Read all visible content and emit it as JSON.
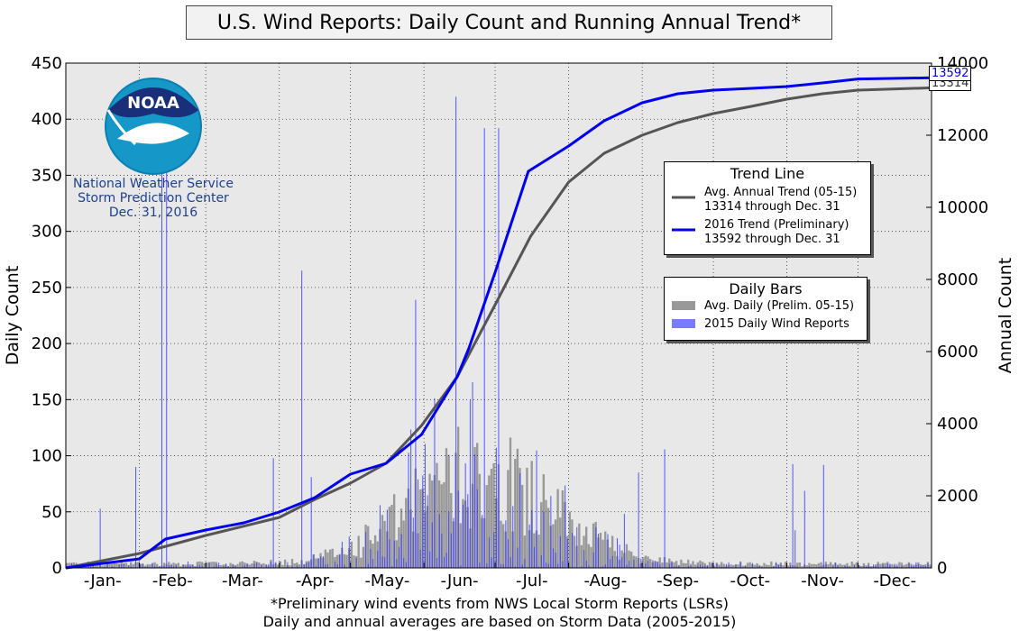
{
  "chart_data": {
    "type": "bar",
    "title": "U.S. Wind Reports: Daily Count and Running Annual Trend*",
    "ylabel_left": "Daily Count",
    "ylabel_right": "Annual Count",
    "ylim_left": [
      0,
      450
    ],
    "ylim_right": [
      0,
      14000
    ],
    "yticks_left": [
      "0",
      "50",
      "100",
      "150",
      "200",
      "250",
      "300",
      "350",
      "400",
      "450"
    ],
    "yticks_right": [
      "0",
      "2000",
      "4000",
      "6000",
      "8000",
      "10000",
      "12000",
      "14000"
    ],
    "month_labels": [
      "-Jan-",
      "-Feb-",
      "-Mar-",
      "-Apr-",
      "-May-",
      "-Jun-",
      "-Jul-",
      "-Aug-",
      "-Sep-",
      "-Oct-",
      "-Nov-",
      "-Dec-"
    ],
    "grid": true,
    "footnote_1": "*Preliminary wind events from NWS Local Storm Reports (LSRs)",
    "footnote_2": "Daily and annual averages are based on Storm Data (2005-2015)",
    "notable_daily_2016": [
      {
        "day": 29,
        "value": 90
      },
      {
        "day": 40,
        "value": 395
      },
      {
        "day": 42,
        "value": 410
      },
      {
        "day": 99,
        "value": 265
      },
      {
        "day": 164,
        "value": 420
      },
      {
        "day": 176,
        "value": 392
      },
      {
        "day": 182,
        "value": 392
      }
    ],
    "trend_lines": {
      "title": "Trend Line",
      "series": [
        {
          "name": "Avg. Annual Trend (05-15)",
          "note": "13314 through Dec. 31",
          "color": "#555555",
          "points": [
            [
              0,
              0
            ],
            [
              31,
              400
            ],
            [
              59,
              900
            ],
            [
              90,
              1400
            ],
            [
              105,
              1900
            ],
            [
              120,
              2350
            ],
            [
              135,
              2900
            ],
            [
              150,
              3950
            ],
            [
              165,
              5300
            ],
            [
              181,
              7300
            ],
            [
              196,
              9200
            ],
            [
              212,
              10700
            ],
            [
              227,
              11500
            ],
            [
              243,
              12000
            ],
            [
              258,
              12350
            ],
            [
              273,
              12600
            ],
            [
              289,
              12800
            ],
            [
              304,
              13000
            ],
            [
              319,
              13150
            ],
            [
              334,
              13250
            ],
            [
              365,
              13314
            ]
          ]
        },
        {
          "name": "2016 Trend (Preliminary)",
          "note": "13592 through Dec. 31",
          "color": "#0000ee",
          "points": [
            [
              0,
              0
            ],
            [
              31,
              250
            ],
            [
              42,
              800
            ],
            [
              59,
              1050
            ],
            [
              75,
              1250
            ],
            [
              90,
              1550
            ],
            [
              105,
              1950
            ],
            [
              120,
              2600
            ],
            [
              135,
              2900
            ],
            [
              150,
              3700
            ],
            [
              165,
              5300
            ],
            [
              170,
              6100
            ],
            [
              181,
              8200
            ],
            [
              195,
              11000
            ],
            [
              212,
              11700
            ],
            [
              227,
              12400
            ],
            [
              243,
              12900
            ],
            [
              258,
              13150
            ],
            [
              273,
              13250
            ],
            [
              289,
              13300
            ],
            [
              304,
              13350
            ],
            [
              319,
              13450
            ],
            [
              334,
              13560
            ],
            [
              365,
              13592
            ]
          ]
        }
      ],
      "end_labels": [
        "13314",
        "13592"
      ]
    },
    "daily_bars": {
      "title": "Daily Bars",
      "series": [
        {
          "name": "Avg. Daily (Prelim. 05-15)",
          "color": "#999999"
        },
        {
          "name": "2015 Daily Wind Reports",
          "color": "#7070ee"
        }
      ]
    }
  },
  "logo": {
    "name": "NOAA",
    "line1": "National Weather Service",
    "line2": "Storm Prediction Center",
    "line3": "Dec. 31, 2016"
  }
}
